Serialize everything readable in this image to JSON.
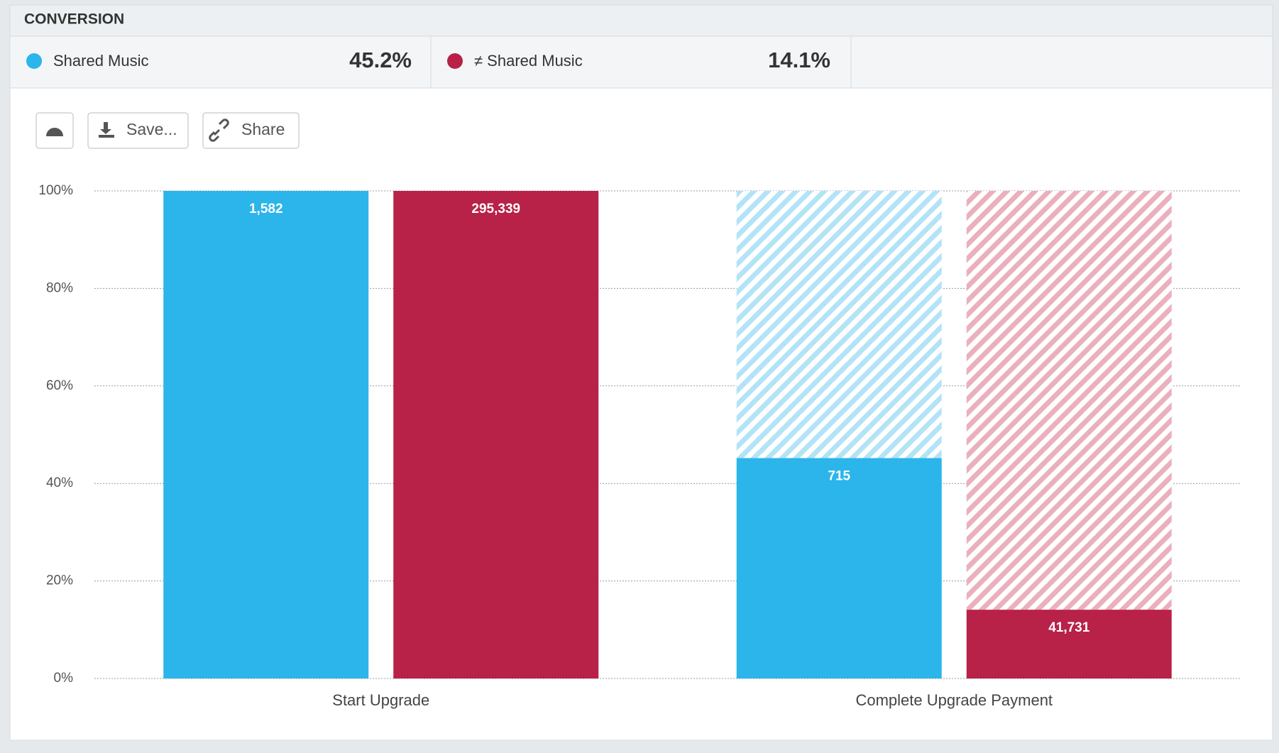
{
  "header": {
    "title": "CONVERSION"
  },
  "buttons": {
    "save": "Save...",
    "share": "Share"
  },
  "chart_data": {
    "type": "bar",
    "categories": [
      "Start Upgrade",
      "Complete Upgrade Payment"
    ],
    "ylim": [
      0,
      100
    ],
    "yticks": [
      {
        "value": 0,
        "label": "0%"
      },
      {
        "value": 20,
        "label": "20%"
      },
      {
        "value": 40,
        "label": "40%"
      },
      {
        "value": 60,
        "label": "60%"
      },
      {
        "value": 80,
        "label": "80%"
      },
      {
        "value": 100,
        "label": "100%"
      }
    ],
    "grid": true,
    "series": [
      {
        "name": "Shared Music",
        "color": "#2bb5ea",
        "hatch_color": "#b3e3f7",
        "values": [
          100,
          45.2
        ],
        "count_labels": [
          "1,582",
          "715"
        ],
        "conversion": {
          "value": 45.2,
          "label": "45.2%"
        }
      },
      {
        "name": "≠ Shared Music",
        "color": "#b82148",
        "hatch_color": "#eab0bd",
        "values": [
          100,
          14.1
        ],
        "count_labels": [
          "295,339",
          "41,731"
        ],
        "conversion": {
          "value": 14.1,
          "label": "14.1%"
        }
      }
    ]
  }
}
